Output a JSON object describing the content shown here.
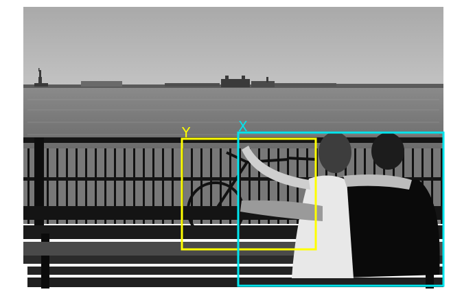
{
  "annotations": [
    {
      "label": "Y",
      "color": "#ffff00"
    },
    {
      "label": "X",
      "color": "#00e5ee"
    }
  ]
}
